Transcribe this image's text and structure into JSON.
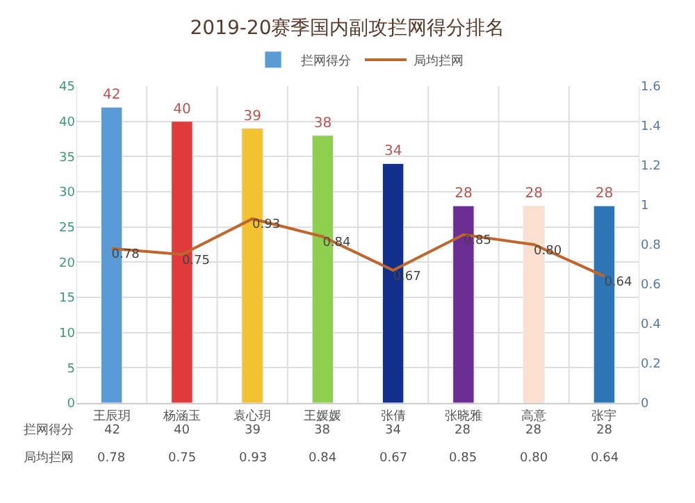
{
  "chart_data": {
    "type": "bar",
    "title": "2019-20赛季国内副攻拦网得分排名",
    "categories": [
      "王辰玥",
      "杨涵玉",
      "袁心玥",
      "王媛媛",
      "张倩",
      "张晓雅",
      "高意",
      "张宇"
    ],
    "series": [
      {
        "name": "拦网得分",
        "color": "#5b9bd5",
        "value_labels": [
          "42",
          "40",
          "39",
          "38",
          "34",
          "28",
          "28",
          "28"
        ],
        "colors": [
          "#5b9bd5",
          "#e03a3a",
          "#f2c232",
          "#8fcf4f",
          "#132f8c",
          "#6b2d92",
          "#fbe0d0",
          "#2e75b6"
        ],
        "values": [
          42,
          40,
          39,
          38,
          34,
          28,
          28,
          28
        ]
      },
      {
        "name": "局均拦网",
        "type": "line",
        "axis": "y2",
        "color": "#c0652b",
        "value_labels": [
          "0.78",
          "0.75",
          "0.93",
          "0.84",
          "0.67",
          "0.85",
          "0.80",
          "0.64"
        ],
        "values": [
          0.78,
          0.75,
          0.93,
          0.84,
          0.67,
          0.85,
          0.8,
          0.64
        ]
      }
    ],
    "ylim": [
      0,
      45
    ],
    "yticks": [
      0,
      5,
      10,
      15,
      20,
      25,
      30,
      35,
      40,
      45
    ],
    "y2lim": [
      0,
      1.6
    ],
    "y2ticks": [
      {
        "value": 0,
        "label": "0"
      },
      {
        "value": 0.2,
        "label": "0.2"
      },
      {
        "value": 0.4,
        "label": "0.4"
      },
      {
        "value": 0.6,
        "label": "0.6"
      },
      {
        "value": 0.8,
        "label": "0.8"
      },
      {
        "value": 1,
        "label": "1"
      },
      {
        "value": 1.2,
        "label": "1.2"
      },
      {
        "value": 1.4,
        "label": "1.4"
      },
      {
        "value": 1.6,
        "label": "1.6"
      }
    ],
    "data_labels": true,
    "grid": true,
    "legend": "top",
    "marker": "none",
    "line_style": "solid"
  }
}
